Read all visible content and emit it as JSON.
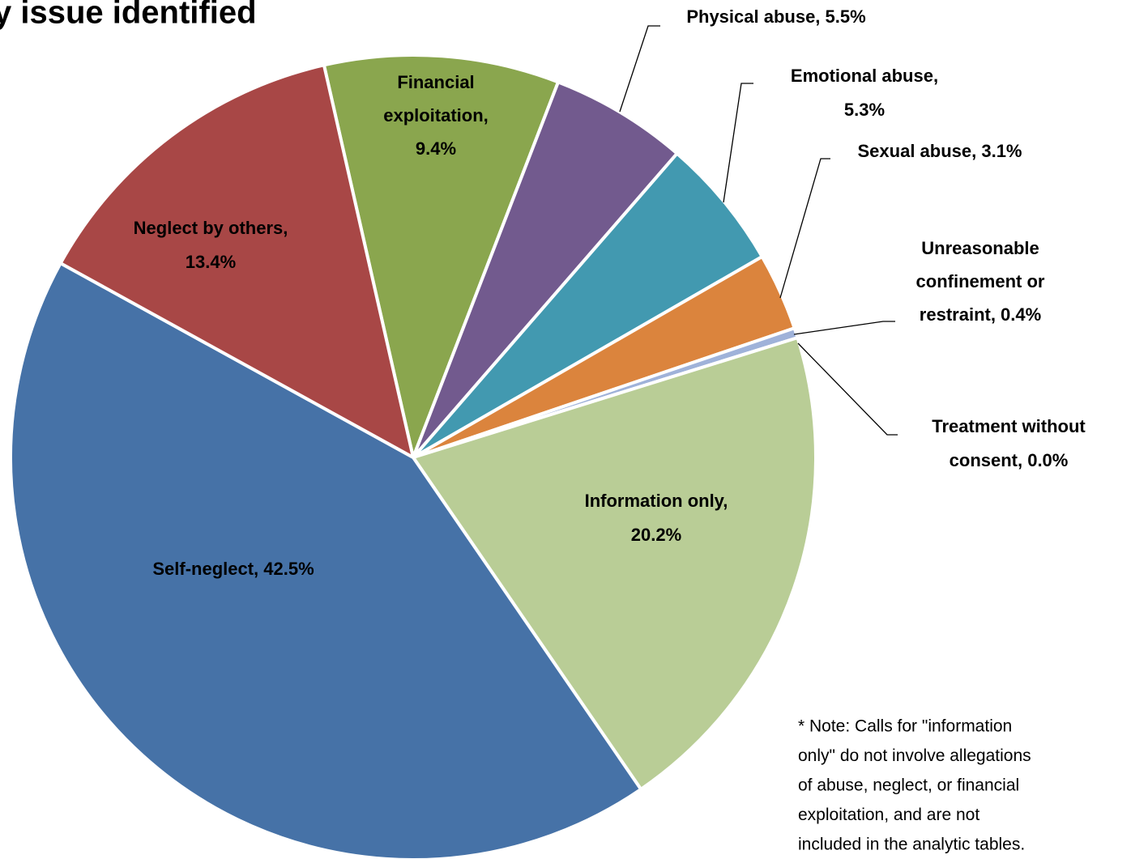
{
  "chart_data": {
    "type": "pie",
    "title": "y issue identified",
    "values": [
      9.4,
      5.5,
      5.3,
      3.1,
      0.4,
      0.0,
      20.2,
      42.5,
      13.4
    ],
    "labels": [
      [
        "Financial",
        "exploitation,",
        "9.4%"
      ],
      [
        "Physical abuse, 5.5%"
      ],
      [
        "Emotional abuse,",
        "5.3%"
      ],
      [
        "Sexual abuse, 3.1%"
      ],
      [
        "Unreasonable",
        "confinement or",
        "restraint, 0.4%"
      ],
      [
        "Treatment without",
        "consent, 0.0%"
      ],
      [
        "Information only,",
        "20.2%"
      ],
      [
        "Self-neglect, 42.5%"
      ],
      [
        "Neglect by others,",
        "13.4%"
      ]
    ],
    "colors": [
      "#8aa64e",
      "#725a8e",
      "#4299b0",
      "#db843d",
      "#9fb2d9",
      "#c0504d",
      "#b9cd96",
      "#4672a7",
      "#a84746"
    ],
    "start_angle": -12.8,
    "note": [
      "* Note: Calls for \"information",
      "only\" do not involve allegations",
      "of abuse, neglect, or financial",
      "exploitation, and are not",
      "included in the analytic tables."
    ]
  }
}
